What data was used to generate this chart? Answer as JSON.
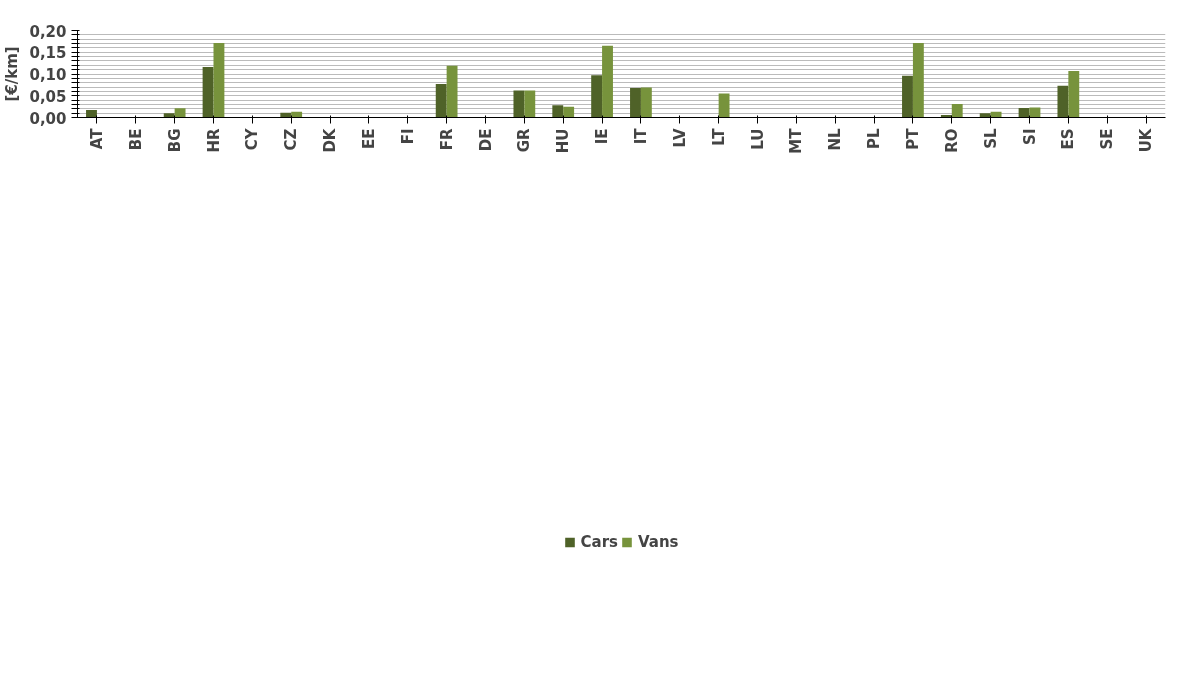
{
  "chart_data": {
    "type": "bar",
    "ylabel": "[€/km]",
    "categories": [
      "AT",
      "BE",
      "BG",
      "HR",
      "CY",
      "CZ",
      "DK",
      "EE",
      "FI",
      "FR",
      "DE",
      "GR",
      "HU",
      "IE",
      "IT",
      "LV",
      "LT",
      "LU",
      "MT",
      "NL",
      "PL",
      "PT",
      "RO",
      "SL",
      "SI",
      "ES",
      "SE",
      "UK"
    ],
    "series": [
      {
        "name": "Cars",
        "color": "#4f6228",
        "values": [
          0.017,
          null,
          0.01,
          0.116,
          null,
          0.011,
          null,
          null,
          null,
          0.077,
          null,
          0.062,
          0.028,
          0.097,
          0.068,
          null,
          null,
          null,
          null,
          null,
          null,
          0.096,
          0.006,
          0.01,
          0.022,
          0.073,
          null,
          null
        ]
      },
      {
        "name": "Vans",
        "color": "#77933c",
        "values": [
          null,
          null,
          0.021,
          0.171,
          null,
          0.013,
          null,
          null,
          null,
          0.119,
          null,
          0.062,
          0.025,
          0.165,
          0.069,
          null,
          0.055,
          null,
          null,
          null,
          null,
          0.171,
          0.031,
          0.013,
          0.023,
          0.107,
          null,
          null
        ]
      }
    ],
    "ylim": [
      0,
      0.2
    ],
    "yticks": [
      {
        "value": 0,
        "label": "0,00"
      },
      {
        "value": 0.01,
        "label": null
      },
      {
        "value": 0.02,
        "label": null
      },
      {
        "value": 0.03,
        "label": null
      },
      {
        "value": 0.04,
        "label": null
      },
      {
        "value": 0.05,
        "label": "0,05"
      },
      {
        "value": 0.06,
        "label": null
      },
      {
        "value": 0.07,
        "label": null
      },
      {
        "value": 0.08,
        "label": null
      },
      {
        "value": 0.09,
        "label": null
      },
      {
        "value": 0.1,
        "label": "0,10"
      },
      {
        "value": 0.11,
        "label": null
      },
      {
        "value": 0.12,
        "label": null
      },
      {
        "value": 0.13,
        "label": null
      },
      {
        "value": 0.14,
        "label": null
      },
      {
        "value": 0.15,
        "label": "0,15"
      },
      {
        "value": 0.16,
        "label": null
      },
      {
        "value": 0.17,
        "label": null
      },
      {
        "value": 0.18,
        "label": null
      },
      {
        "value": 0.19,
        "label": null
      },
      {
        "value": 0.2,
        "label": "0,20"
      }
    ],
    "grid": "y",
    "legend": "bottom"
  }
}
